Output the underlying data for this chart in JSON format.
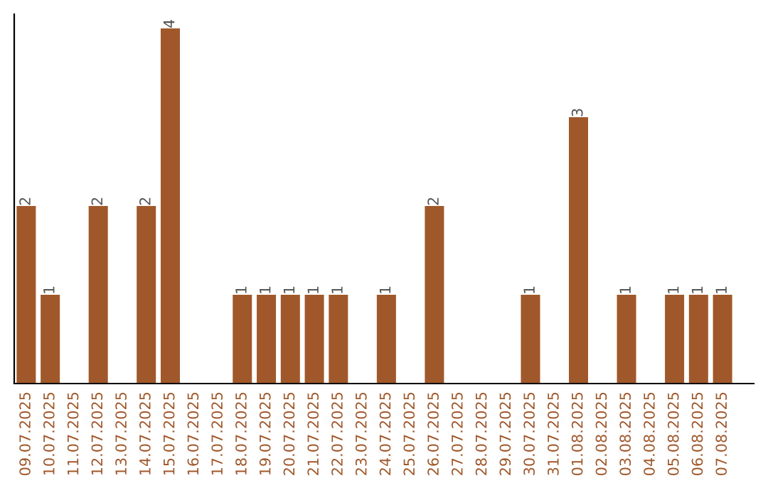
{
  "chart_data": {
    "type": "bar",
    "categories": [
      "09.07.2025",
      "10.07.2025",
      "11.07.2025",
      "12.07.2025",
      "13.07.2025",
      "14.07.2025",
      "15.07.2025",
      "16.07.2025",
      "17.07.2025",
      "18.07.2025",
      "19.07.2025",
      "20.07.2025",
      "21.07.2025",
      "22.07.2025",
      "23.07.2025",
      "24.07.2025",
      "25.07.2025",
      "26.07.2025",
      "27.07.2025",
      "28.07.2025",
      "29.07.2025",
      "30.07.2025",
      "31.07.2025",
      "01.08.2025",
      "02.08.2025",
      "03.08.2025",
      "04.08.2025",
      "05.08.2025",
      "06.08.2025",
      "07.08.2025"
    ],
    "values": [
      2,
      1,
      0,
      2,
      0,
      2,
      4,
      0,
      0,
      1,
      1,
      1,
      1,
      1,
      0,
      1,
      0,
      2,
      0,
      0,
      0,
      1,
      0,
      3,
      0,
      1,
      0,
      1,
      1,
      1
    ],
    "value_labels": [
      "2",
      "1",
      null,
      "2",
      null,
      "2",
      "4",
      null,
      null,
      "1",
      "1",
      "1",
      "1",
      "1",
      null,
      "1",
      null,
      "2",
      null,
      null,
      null,
      "1",
      null,
      "3",
      null,
      "1",
      null,
      "1",
      "1",
      "1"
    ],
    "color": "#a0582a",
    "tick_labels": "x",
    "grid": false,
    "legend": false
  }
}
